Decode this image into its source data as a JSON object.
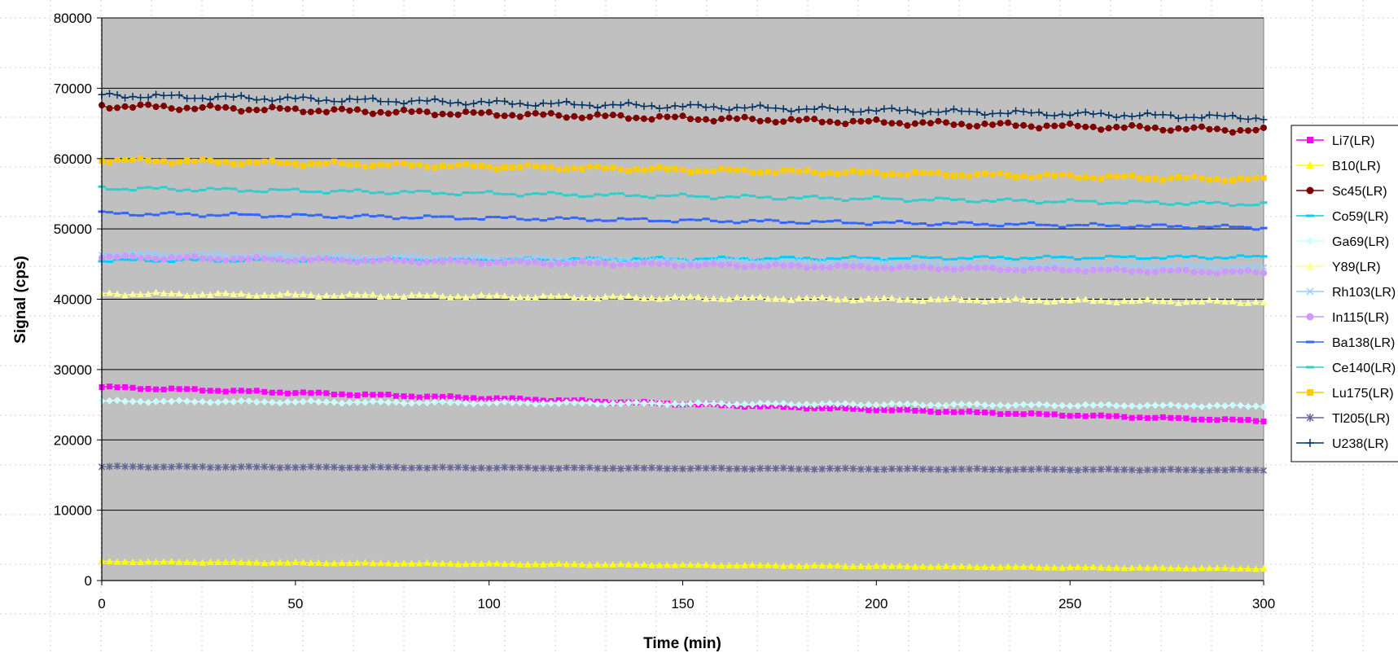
{
  "chart_data": {
    "type": "line",
    "title": "",
    "xlabel": "Time (min)",
    "ylabel": "Signal (cps)",
    "xlim": [
      0,
      300
    ],
    "ylim": [
      0,
      80000
    ],
    "xticks": [
      0,
      50,
      100,
      150,
      200,
      250,
      300
    ],
    "yticks": [
      0,
      10000,
      20000,
      30000,
      40000,
      50000,
      60000,
      70000,
      80000
    ],
    "grid": "horizontal major gridlines; dotted outer grid",
    "plot_background": "#C0C0C0",
    "legend_position": "right",
    "x_step": 2,
    "series": [
      {
        "name": "Li7(LR)",
        "color": "#FF00FF",
        "marker": "square",
        "start": 27500,
        "end": 22700
      },
      {
        "name": "B10(LR)",
        "color": "#FFFF00",
        "marker": "triangle",
        "start": 2700,
        "end": 1700
      },
      {
        "name": "Sc45(LR)",
        "color": "#800000",
        "marker": "circle",
        "start": 67500,
        "end": 64000
      },
      {
        "name": "Co59(LR)",
        "color": "#00CCFF",
        "marker": "dash",
        "start": 45500,
        "end": 46000
      },
      {
        "name": "Ga69(LR)",
        "color": "#CCFFFF",
        "marker": "diamond",
        "start": 25500,
        "end": 24800
      },
      {
        "name": "Y89(LR)",
        "color": "#FFFF99",
        "marker": "triangle",
        "start": 40800,
        "end": 39600
      },
      {
        "name": "Rh103(LR)",
        "color": "#99CCFF",
        "marker": "x",
        "start": 46500,
        "end": 44500
      },
      {
        "name": "In115(LR)",
        "color": "#CC99FF",
        "marker": "circle",
        "start": 46000,
        "end": 43800
      },
      {
        "name": "Ba138(LR)",
        "color": "#3366FF",
        "marker": "dash",
        "start": 52200,
        "end": 50200
      },
      {
        "name": "Ce140(LR)",
        "color": "#33CCCC",
        "marker": "dash",
        "start": 55800,
        "end": 53500
      },
      {
        "name": "Lu175(LR)",
        "color": "#FFCC00",
        "marker": "square",
        "start": 59800,
        "end": 57000
      },
      {
        "name": "Tl205(LR)",
        "color": "#666699",
        "marker": "asterisk",
        "start": 16200,
        "end": 15700
      },
      {
        "name": "U238(LR)",
        "color": "#003366",
        "marker": "plus",
        "start": 69000,
        "end": 65800
      }
    ]
  }
}
